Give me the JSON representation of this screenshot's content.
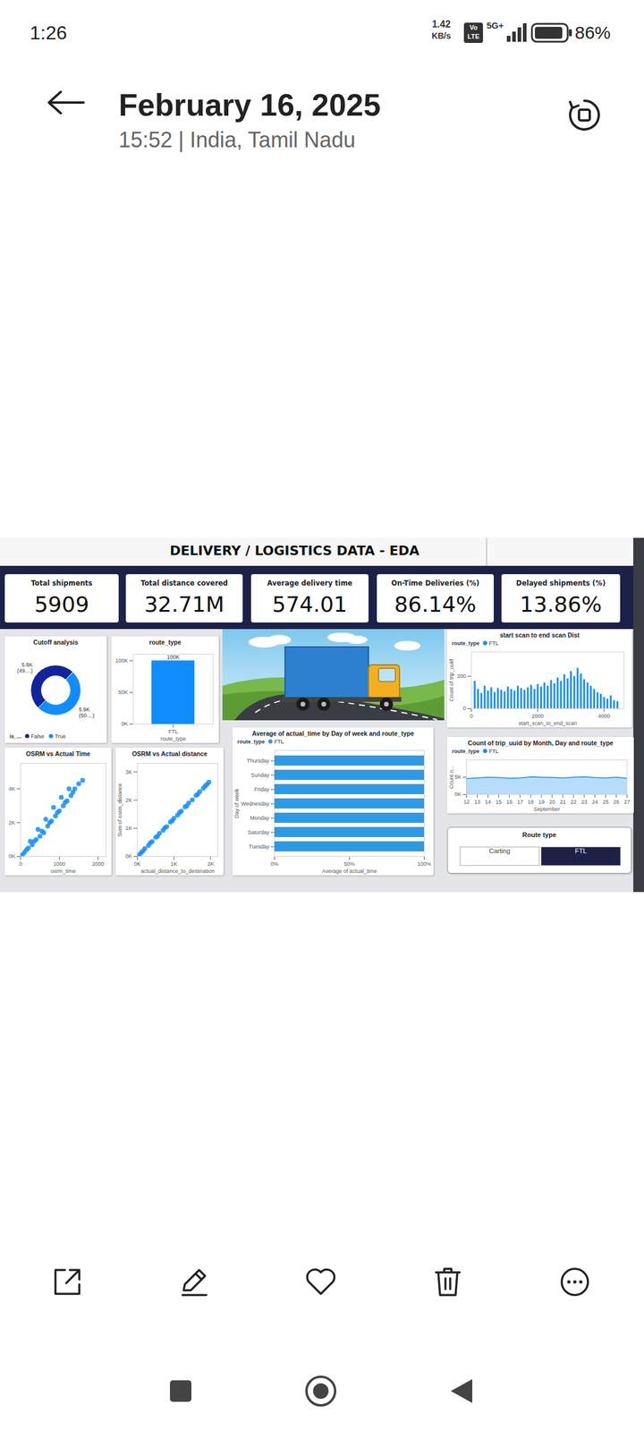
{
  "status_bar": {
    "time": "1:26",
    "network_speed": "1.42",
    "network_unit": "KB/s",
    "volte_top": "Vo",
    "volte_bottom": "LTE",
    "signal": "5G+",
    "battery": "86%"
  },
  "header": {
    "title": "February 16, 2025",
    "subtitle": "15:52 | India, Tamil Nadu"
  },
  "dashboard": {
    "title": "DELIVERY / LOGISTICS DATA - EDA",
    "kpis": [
      {
        "label": "Total shipments",
        "value": "5909"
      },
      {
        "label": "Total distance covered",
        "value": "32.71M"
      },
      {
        "label": "Average delivery time",
        "value": "574.01"
      },
      {
        "label": "On-Time Deliveries (%)",
        "value": "86.14%"
      },
      {
        "label": "Delayed shipments (%)",
        "value": "13.86%"
      }
    ],
    "slicer": {
      "title": "Route type",
      "options": [
        "Carting",
        "FTL"
      ],
      "selected": "FTL"
    }
  },
  "chart_data": [
    {
      "type": "pie",
      "title": "Cutoff analysis",
      "categories": [
        "False",
        "True"
      ],
      "values": [
        5800,
        5900
      ],
      "value_labels": [
        "5.8K (49....)",
        "5.9K (50....)"
      ],
      "data_labels": true,
      "colors": [
        "#12239e",
        "#118dff"
      ],
      "legend": "bottom",
      "legend_title": "is_..."
    },
    {
      "type": "bar",
      "title": "route_type",
      "categories": [
        "FTL"
      ],
      "values": [
        100000
      ],
      "value_labels": [
        "100K"
      ],
      "data_labels": true,
      "color": "#118dff",
      "xlabel": "route_type",
      "ylim": [
        0,
        110000
      ],
      "yticks": [
        {
          "value": 0,
          "label": "0K"
        },
        {
          "value": 50000,
          "label": "50K"
        },
        {
          "value": 100000,
          "label": "100K"
        }
      ]
    },
    {
      "type": "bar",
      "title": "start scan to end scan Dist",
      "legend_title": "route_type",
      "legend": "top-left",
      "xlabel": "start_scan_to_end_scan",
      "ylabel": "Count of trip_uuid",
      "x": [
        100,
        200,
        300,
        400,
        500,
        600,
        700,
        800,
        900,
        1000,
        1100,
        1200,
        1300,
        1400,
        1500,
        1600,
        1700,
        1800,
        1900,
        2000,
        2100,
        2200,
        2300,
        2400,
        2500,
        2600,
        2700,
        2800,
        2900,
        3000,
        3100,
        3200,
        3300,
        3400,
        3500,
        3600,
        3700,
        3800,
        3900,
        4000,
        4100,
        4200,
        4300,
        4400
      ],
      "series": [
        {
          "name": "FTL",
          "color": "#118dff",
          "values": [
            170,
            120,
            95,
            140,
            110,
            130,
            100,
            125,
            115,
            105,
            135,
            120,
            110,
            140,
            125,
            115,
            130,
            145,
            120,
            150,
            135,
            160,
            140,
            175,
            155,
            190,
            170,
            210,
            185,
            230,
            200,
            250,
            215,
            180,
            160,
            140,
            120,
            100,
            90,
            70,
            60,
            80,
            50,
            45
          ]
        }
      ],
      "xlim": [
        0,
        4600
      ],
      "xticks": [
        0,
        2000,
        4000
      ],
      "ylim": [
        0,
        350
      ],
      "yticks": [
        0,
        200
      ]
    },
    {
      "type": "scatter",
      "title": "OSRM vs Actual Time",
      "xlabel": "osrm_time",
      "color": "#118dff",
      "x": [
        50,
        100,
        150,
        200,
        300,
        350,
        400,
        500,
        550,
        600,
        700,
        750,
        800,
        900,
        950,
        1000,
        1100,
        1150,
        1200,
        1300,
        1350,
        1400,
        1500,
        1600,
        250,
        450,
        650,
        850,
        1050,
        1250
      ],
      "values": [
        100,
        250,
        400,
        500,
        700,
        900,
        1000,
        1200,
        1500,
        1400,
        1800,
        2000,
        2100,
        2400,
        2600,
        2700,
        3000,
        3200,
        3300,
        3600,
        3800,
        4000,
        4300,
        4500,
        900,
        1600,
        2200,
        2900,
        3500,
        4000
      ],
      "xlim": [
        0,
        2200
      ],
      "xticks": [
        0,
        1000,
        2000
      ],
      "ylim": [
        0,
        5500
      ],
      "yticks": [
        {
          "value": 0,
          "label": "0K"
        },
        {
          "value": 2000,
          "label": "2K"
        },
        {
          "value": 4000,
          "label": "4K"
        }
      ]
    },
    {
      "type": "scatter",
      "title": "OSRM vs Actual distance",
      "xlabel": "actual_distance_to_destination",
      "ylabel": "Sum of osrm_distance",
      "color": "#118dff",
      "x": [
        50,
        100,
        150,
        200,
        300,
        350,
        400,
        500,
        550,
        600,
        700,
        750,
        800,
        900,
        950,
        1000,
        1100,
        1150,
        1200,
        1300,
        1350,
        1400,
        1500,
        1600,
        1650,
        1700,
        1800,
        1850,
        1900,
        1950
      ],
      "values": [
        60,
        140,
        190,
        280,
        390,
        480,
        530,
        680,
        720,
        820,
        930,
        1020,
        1060,
        1220,
        1270,
        1360,
        1470,
        1560,
        1610,
        1760,
        1800,
        1900,
        2010,
        2170,
        2210,
        2300,
        2420,
        2500,
        2560,
        2640
      ],
      "xlim": [
        0,
        2200
      ],
      "xticks": [
        {
          "value": 0,
          "label": "0K"
        },
        {
          "value": 1000,
          "label": "1K"
        },
        {
          "value": 2000,
          "label": "2K"
        }
      ],
      "ylim": [
        0,
        3300
      ],
      "yticks": [
        {
          "value": 0,
          "label": "0K"
        },
        {
          "value": 1000,
          "label": "1K"
        },
        {
          "value": 2000,
          "label": "2K"
        },
        {
          "value": 3000,
          "label": "3K"
        }
      ]
    },
    {
      "type": "bar",
      "orientation": "horizontal",
      "title": "Average of actual_time by Day of week and route_type",
      "legend_title": "route_type",
      "legend": "top-left",
      "xlabel": "Average of actual_time",
      "ylabel": "Day of week",
      "categories": [
        "Thursday",
        "Sunday",
        "Friday",
        "Wednesday",
        "Monday",
        "Saturday",
        "Tuesday"
      ],
      "series": [
        {
          "name": "FTL",
          "color": "#2b9be8",
          "values": [
            100,
            100,
            100,
            100,
            100,
            100,
            100
          ]
        }
      ],
      "xlim": [
        0,
        100
      ],
      "xticks": [
        {
          "value": 0,
          "label": "0%"
        },
        {
          "value": 50,
          "label": "50%"
        },
        {
          "value": 100,
          "label": "100%"
        }
      ]
    },
    {
      "type": "area",
      "title": "Count of trip_uuid by Month, Day and route_type",
      "legend_title": "route_type",
      "legend": "top-left",
      "xlabel": "September",
      "ylabel": "Count o...",
      "x": [
        12,
        13,
        14,
        15,
        16,
        17,
        18,
        19,
        20,
        21,
        22,
        23,
        24,
        25,
        26,
        27
      ],
      "series": [
        {
          "name": "FTL",
          "color": "#118dff",
          "values": [
            4600,
            4800,
            5000,
            4900,
            4700,
            4800,
            5100,
            5000,
            4900,
            4800,
            5000,
            5100,
            4900,
            4800,
            5000,
            4700
          ]
        }
      ],
      "xlim": [
        12,
        27
      ],
      "xticks": [
        12,
        13,
        14,
        15,
        16,
        17,
        18,
        19,
        20,
        21,
        22,
        23,
        24,
        25,
        26,
        27
      ],
      "ylim": [
        0,
        10000
      ],
      "yticks": [
        {
          "value": 0,
          "label": "0K"
        },
        {
          "value": 5000,
          "label": "5K"
        }
      ]
    }
  ]
}
